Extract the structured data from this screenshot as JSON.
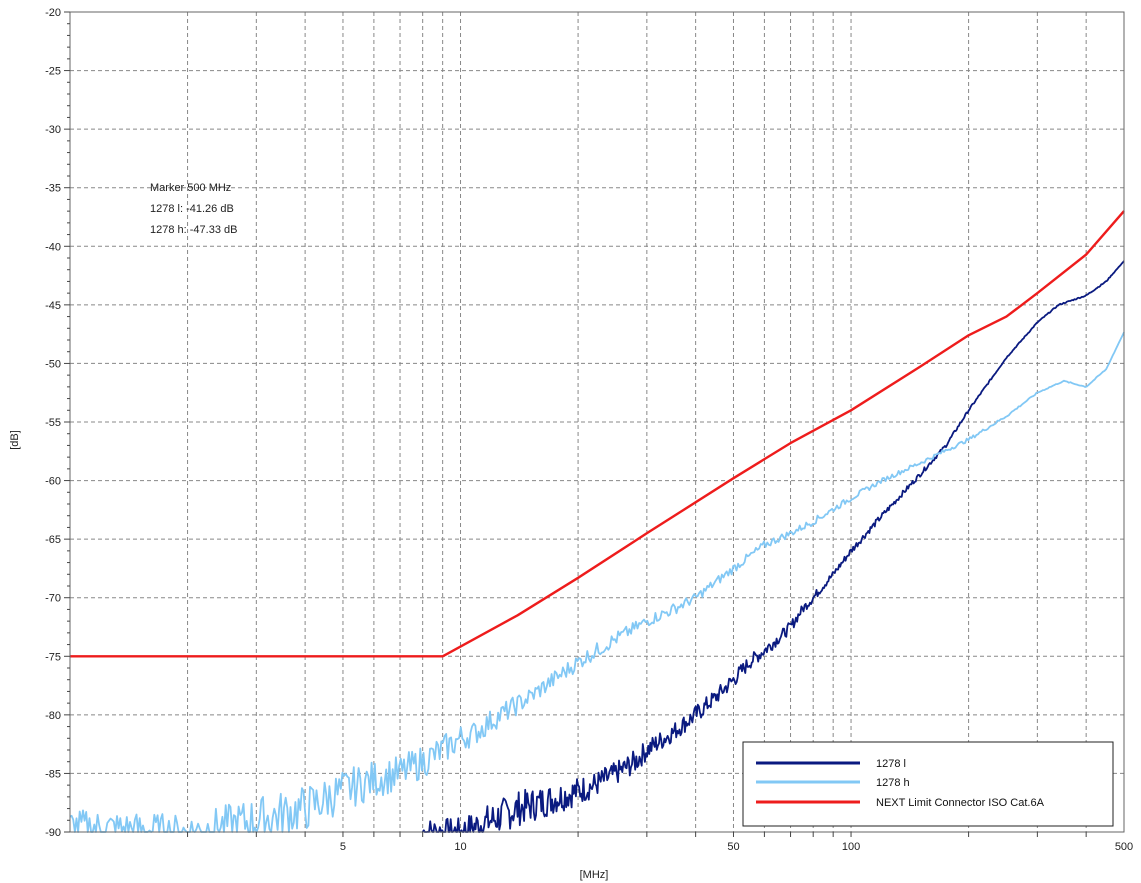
{
  "chart_data": {
    "type": "line",
    "xlabel": "[MHz]",
    "ylabel": "[dB]",
    "xscale": "log",
    "xlim": [
      1,
      500
    ],
    "ylim": [
      -90,
      -20
    ],
    "grid": true,
    "legend_position": "bottom-right",
    "x_tick_labels": [
      {
        "value": 5,
        "label": "5"
      },
      {
        "value": 10,
        "label": "10"
      },
      {
        "value": 50,
        "label": "50"
      },
      {
        "value": 100,
        "label": "100"
      },
      {
        "value": 500,
        "label": "500"
      }
    ],
    "y_tick_labels": [
      "-20",
      "-25",
      "-30",
      "-35",
      "-40",
      "-45",
      "-50",
      "-55",
      "-60",
      "-65",
      "-70",
      "-75",
      "-80",
      "-85",
      "-90"
    ],
    "y_ticks": [
      -20,
      -25,
      -30,
      -35,
      -40,
      -45,
      -50,
      -55,
      -60,
      -65,
      -70,
      -75,
      -80,
      -85,
      -90
    ],
    "marker": {
      "title": "Marker 500 MHz",
      "lines": [
        "1278 l: -41.26 dB",
        "1278 h: -47.33 dB"
      ]
    },
    "series": [
      {
        "name": "1278 l",
        "color": "#0a1a80",
        "points": [
          [
            8,
            -90
          ],
          [
            10,
            -90
          ],
          [
            12,
            -89
          ],
          [
            14,
            -88
          ],
          [
            16,
            -87.5
          ],
          [
            18,
            -87
          ],
          [
            20,
            -86.5
          ],
          [
            22,
            -86
          ],
          [
            25,
            -85
          ],
          [
            28,
            -84
          ],
          [
            30,
            -83
          ],
          [
            35,
            -81.5
          ],
          [
            40,
            -80
          ],
          [
            45,
            -78.5
          ],
          [
            50,
            -77
          ],
          [
            55,
            -75.5
          ],
          [
            60,
            -74.5
          ],
          [
            65,
            -73.5
          ],
          [
            70,
            -72.5
          ],
          [
            75,
            -71
          ],
          [
            80,
            -70
          ],
          [
            90,
            -68
          ],
          [
            100,
            -66
          ],
          [
            120,
            -63
          ],
          [
            150,
            -59.5
          ],
          [
            175,
            -57
          ],
          [
            200,
            -54
          ],
          [
            250,
            -49.5
          ],
          [
            300,
            -46.5
          ],
          [
            340,
            -45
          ],
          [
            400,
            -44.2
          ],
          [
            450,
            -43
          ],
          [
            500,
            -41.26
          ]
        ],
        "noise": [
          1.2,
          1.2,
          1.5,
          1.5,
          1.4,
          1.3,
          1.2,
          1.1,
          1.0,
          1.0,
          0.9,
          0.8,
          0.8,
          0.7,
          0.7,
          0.6,
          0.6,
          0.5,
          0.5,
          0.4,
          0.4,
          0.3,
          0.3,
          0.25,
          0.2,
          0.15,
          0.1,
          0.05,
          0.05,
          0.05,
          0.05,
          0.05,
          0
        ]
      },
      {
        "name": "1278 h",
        "color": "#82c8f5",
        "points": [
          [
            1,
            -89.5
          ],
          [
            2,
            -90
          ],
          [
            3,
            -89
          ],
          [
            4,
            -88
          ],
          [
            5,
            -86.5
          ],
          [
            6,
            -85.5
          ],
          [
            7,
            -85
          ],
          [
            8,
            -84
          ],
          [
            9,
            -83
          ],
          [
            10,
            -82
          ],
          [
            11,
            -81.5
          ],
          [
            12,
            -80.5
          ],
          [
            15,
            -78.5
          ],
          [
            20,
            -75.5
          ],
          [
            25,
            -73.5
          ],
          [
            30,
            -72
          ],
          [
            35,
            -71
          ],
          [
            40,
            -70
          ],
          [
            50,
            -67.5
          ],
          [
            60,
            -65.5
          ],
          [
            70,
            -64.5
          ],
          [
            80,
            -63.5
          ],
          [
            100,
            -61.5
          ],
          [
            120,
            -60
          ],
          [
            150,
            -58.5
          ],
          [
            200,
            -56.5
          ],
          [
            250,
            -54.5
          ],
          [
            300,
            -52.5
          ],
          [
            350,
            -51.5
          ],
          [
            400,
            -52
          ],
          [
            450,
            -50.5
          ],
          [
            500,
            -47.33
          ]
        ],
        "noise": [
          1.5,
          1.5,
          2.0,
          2.0,
          1.8,
          1.6,
          1.5,
          1.4,
          1.3,
          1.2,
          1.0,
          1.0,
          0.8,
          0.7,
          0.6,
          0.5,
          0.5,
          0.4,
          0.4,
          0.35,
          0.3,
          0.3,
          0.25,
          0.2,
          0.2,
          0.15,
          0.1,
          0.05,
          0.05,
          0.05,
          0.05,
          0
        ]
      },
      {
        "name": "NEXT Limit Connector ISO Cat.6A",
        "color": "#ee1c1c",
        "points": [
          [
            1,
            -75
          ],
          [
            9,
            -75
          ],
          [
            14,
            -71.5
          ],
          [
            20,
            -68.3
          ],
          [
            30,
            -64.5
          ],
          [
            50,
            -59.8
          ],
          [
            70,
            -56.8
          ],
          [
            100,
            -54
          ],
          [
            150,
            -50.3
          ],
          [
            200,
            -47.6
          ],
          [
            250,
            -46
          ],
          [
            300,
            -44
          ],
          [
            400,
            -40.7
          ],
          [
            500,
            -37
          ]
        ],
        "noise": []
      }
    ]
  }
}
